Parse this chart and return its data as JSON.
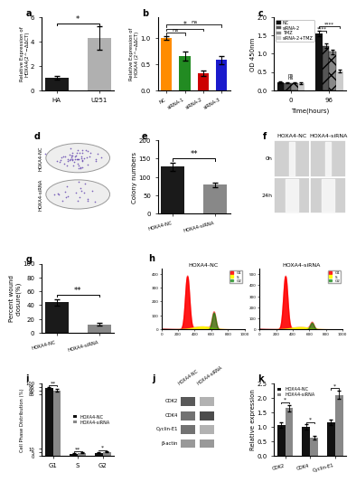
{
  "panel_a": {
    "categories": [
      "HA",
      "U251"
    ],
    "values": [
      1.0,
      4.3
    ],
    "errors": [
      0.15,
      0.95
    ],
    "colors": [
      "#1a1a1a",
      "#b0b0b0"
    ],
    "ylabel": "Relative Expression of\nHOXA4(2^−ΔΔCT)",
    "ylim": [
      0,
      6
    ],
    "yticks": [
      0,
      2,
      4,
      6
    ],
    "sig": "*"
  },
  "panel_b": {
    "categories": [
      "NC",
      "siRNA-1",
      "siRNA-2",
      "siRNA-3"
    ],
    "values": [
      1.0,
      0.65,
      0.33,
      0.58
    ],
    "errors": [
      0.04,
      0.09,
      0.05,
      0.08
    ],
    "colors": [
      "#FF8C00",
      "#228B22",
      "#CC0000",
      "#1a1aCC"
    ],
    "ylabel": "Relative Expression of\nHOXA4 (2^−ΔΔCT)",
    "ylim": [
      0,
      1.4
    ],
    "yticks": [
      0.0,
      0.5,
      1.0
    ]
  },
  "panel_c": {
    "time_points": [
      0,
      96
    ],
    "groups": [
      "NC",
      "siRNA-2",
      "TMZ",
      "siRNA-2+TMZ"
    ],
    "values_0h": [
      0.22,
      0.2,
      0.2,
      0.19
    ],
    "values_96h": [
      1.55,
      1.22,
      1.05,
      0.52
    ],
    "errors_0h": [
      0.02,
      0.02,
      0.02,
      0.02
    ],
    "errors_96h": [
      0.07,
      0.06,
      0.07,
      0.04
    ],
    "bar_colors_0h": [
      "#111111",
      "#555555",
      "#888888",
      "#cccccc"
    ],
    "bar_colors_96h": [
      "#111111",
      "#555555",
      "#888888",
      "#cccccc"
    ],
    "hatch": [
      "",
      "//",
      "xx",
      ""
    ],
    "ylabel": "OD 450nm",
    "xlabel": "Time(hours)",
    "ylim": [
      0.0,
      2.0
    ],
    "yticks": [
      0.0,
      0.5,
      1.0,
      1.5,
      2.0
    ]
  },
  "panel_e": {
    "categories": [
      "HOXA4-NC",
      "HOXA4-siRNA"
    ],
    "values": [
      128,
      78
    ],
    "errors": [
      11,
      7
    ],
    "colors": [
      "#1a1a1a",
      "#888888"
    ],
    "ylabel": "Colony numbers",
    "ylim": [
      0,
      200
    ],
    "yticks": [
      0,
      50,
      100,
      150,
      200
    ],
    "sig": "**"
  },
  "panel_g": {
    "categories": [
      "HOXA4-NC",
      "HOXA4-siRNA"
    ],
    "values": [
      44,
      12
    ],
    "errors": [
      5,
      2
    ],
    "colors": [
      "#1a1a1a",
      "#888888"
    ],
    "ylabel": "Percent wound\nclosure(%)",
    "ylim": [
      0,
      100
    ],
    "yticks": [
      0,
      20,
      40,
      60,
      80,
      100
    ],
    "sig": "**"
  },
  "panel_i": {
    "phases": [
      "G1",
      "S",
      "G2"
    ],
    "nc_values": [
      93.5,
      3.2,
      4.5
    ],
    "sirna_values": [
      90.0,
      4.2,
      5.8
    ],
    "nc_errors": [
      1.5,
      0.4,
      0.5
    ],
    "sirna_errors": [
      1.8,
      0.5,
      0.6
    ],
    "ylabel": "Cell Phase Distribution (%)",
    "sigs": [
      "**",
      "**",
      "*"
    ]
  },
  "panel_k": {
    "proteins": [
      "CDK2",
      "CDK4",
      "Cyclin-E1"
    ],
    "nc_values": [
      1.05,
      1.0,
      1.15
    ],
    "sirna_values": [
      1.65,
      0.62,
      2.1
    ],
    "nc_errors": [
      0.09,
      0.08,
      0.1
    ],
    "sirna_errors": [
      0.11,
      0.07,
      0.14
    ],
    "ylabel": "Relative expression",
    "ylim": [
      0.0,
      2.5
    ],
    "yticks": [
      0.0,
      0.5,
      1.0,
      1.5,
      2.0,
      2.5
    ],
    "sigs": [
      "*",
      "*",
      "*"
    ]
  },
  "background_color": "#ffffff",
  "lfs": 5,
  "tfs": 5
}
